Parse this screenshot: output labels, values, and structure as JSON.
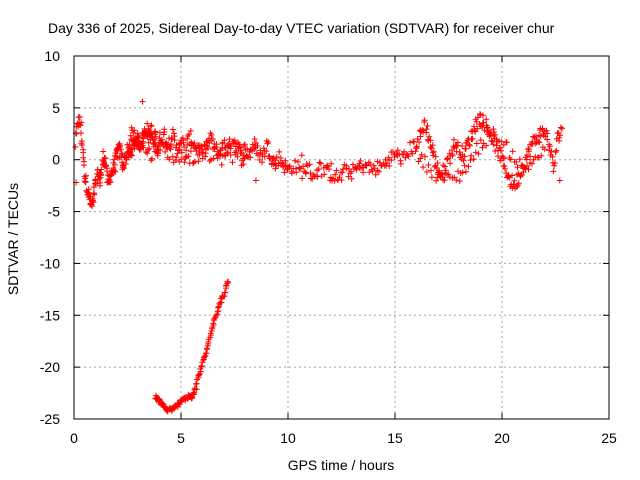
{
  "chart_data": {
    "type": "scatter",
    "title": "Day 336 of 2025, Sidereal Day-to-day VTEC variation (SDTVAR) for receiver chur",
    "xlabel": "GPS time / hours",
    "ylabel": "SDTVAR / TECUs",
    "xlim": [
      0,
      25
    ],
    "ylim": [
      -25,
      10
    ],
    "xticks": [
      "0",
      "5",
      "10",
      "15",
      "20",
      "25"
    ],
    "yticks": [
      "10",
      "5",
      "0",
      "-5",
      "-10",
      "-15",
      "-20",
      "-25"
    ],
    "grid": true,
    "marker": "+",
    "color": "#ff0000",
    "series": [
      {
        "name": "main",
        "x": [
          0.05,
          0.2,
          0.3,
          0.4,
          0.5,
          0.6,
          0.7,
          0.8,
          0.9,
          1.0,
          1.1,
          1.2,
          1.3,
          1.4,
          1.5,
          1.6,
          1.7,
          1.8,
          1.9,
          2.0,
          2.1,
          2.2,
          2.3,
          2.4,
          2.5,
          2.6,
          2.7,
          2.8,
          2.9,
          3.0,
          3.1,
          3.2,
          3.3,
          3.4,
          3.5,
          3.6,
          3.7,
          3.8,
          3.9,
          4.0,
          4.2,
          4.4,
          4.6,
          4.8,
          5.0,
          5.2,
          5.4,
          5.6,
          5.8,
          6.0,
          6.2,
          6.4,
          6.6,
          6.8,
          7.0,
          7.2,
          7.4,
          7.6,
          7.8,
          8.0,
          8.2,
          8.4,
          8.6,
          8.8,
          9.0,
          9.2,
          9.4,
          9.6,
          9.8,
          10.0,
          10.3,
          10.6,
          10.9,
          11.2,
          11.5,
          11.8,
          12.1,
          12.4,
          12.7,
          13.0,
          13.3,
          13.6,
          13.9,
          14.2,
          14.5,
          14.8,
          15.1,
          15.4,
          15.7,
          16.0,
          16.2,
          16.4,
          16.6,
          16.8,
          17.0,
          17.2,
          17.4,
          17.6,
          17.8,
          18.0,
          18.2,
          18.4,
          18.6,
          18.8,
          19.0,
          19.2,
          19.4,
          19.6,
          19.8,
          20.0,
          20.2,
          20.4,
          20.6,
          20.8,
          21.0,
          21.2,
          21.4,
          21.6,
          21.8,
          22.0,
          22.2,
          22.4,
          22.6,
          22.8
        ],
        "y": [
          1.5,
          3.8,
          3.5,
          1.0,
          -1.5,
          -2.5,
          -3.5,
          -4.5,
          -4.0,
          -2.5,
          -1.5,
          -2.0,
          -1.0,
          0.5,
          -0.5,
          -2.5,
          -1.5,
          -1.0,
          -0.5,
          0.5,
          1.0,
          0.5,
          -0.5,
          0.0,
          0.8,
          0.5,
          1.0,
          1.5,
          2.0,
          1.8,
          1.5,
          2.0,
          2.5,
          3.0,
          2.2,
          2.8,
          1.5,
          2.5,
          1.0,
          2.0,
          2.5,
          1.5,
          2.5,
          1.0,
          2.0,
          0.8,
          2.2,
          1.5,
          1.0,
          0.5,
          1.5,
          2.0,
          1.0,
          0.5,
          1.5,
          1.0,
          2.0,
          1.5,
          0.5,
          1.0,
          0.5,
          1.5,
          0.8,
          0.2,
          1.5,
          0.5,
          -0.5,
          0.2,
          -0.5,
          -1.0,
          -0.5,
          -1.2,
          -0.8,
          -1.5,
          -0.8,
          -1.2,
          -1.5,
          -1.8,
          -1.0,
          -1.2,
          -0.8,
          -0.5,
          -1.0,
          -0.8,
          -0.5,
          0.2,
          0.5,
          0.0,
          1.0,
          1.5,
          2.5,
          3.5,
          2.0,
          0.5,
          -1.0,
          -1.5,
          -0.5,
          0.5,
          1.5,
          1.0,
          0.5,
          1.5,
          2.5,
          3.5,
          4.0,
          3.5,
          2.8,
          2.0,
          1.0,
          0.0,
          -1.0,
          -2.0,
          -2.5,
          -1.5,
          -0.5,
          0.5,
          1.5,
          2.0,
          2.5,
          2.8,
          1.5,
          -1.0,
          2.0,
          3.0
        ]
      },
      {
        "name": "branch-a",
        "x": [
          2.6,
          2.8,
          3.2,
          3.6,
          4.0,
          4.4,
          4.8,
          5.2,
          5.6,
          6.0,
          6.5,
          7.0,
          7.5,
          8.0,
          16.0,
          16.5,
          17.0,
          17.5,
          18.0,
          18.5,
          19.0,
          19.5,
          20.0,
          20.5,
          21.0,
          21.5,
          22.0
        ],
        "y": [
          2.0,
          3.0,
          1.2,
          0.5,
          1.2,
          0.8,
          0.0,
          0.5,
          0.2,
          0.8,
          0.2,
          1.0,
          0.3,
          -0.2,
          0.5,
          -0.5,
          -1.5,
          -2.0,
          -1.5,
          -0.2,
          1.5,
          2.5,
          1.5,
          0.5,
          -1.0,
          0.0,
          1.0
        ]
      },
      {
        "name": "outliers",
        "x": [
          3.2,
          0.1,
          8.5,
          6.9,
          22.7
        ],
        "y": [
          5.6,
          -2.2,
          -2.0,
          -0.5,
          -2.0
        ]
      },
      {
        "name": "low-arc",
        "x": [
          3.8,
          3.9,
          4.0,
          4.1,
          4.2,
          4.3,
          4.4,
          4.5,
          4.6,
          4.7,
          4.8,
          4.9,
          5.0,
          5.1,
          5.2,
          5.3,
          5.4,
          5.5,
          5.6,
          5.7,
          5.8,
          5.9,
          6.0,
          6.1,
          6.2,
          6.3,
          6.4,
          6.5,
          6.6,
          6.7,
          6.8,
          6.9,
          7.0,
          7.1,
          7.2
        ],
        "y": [
          -22.9,
          -23.1,
          -23.3,
          -23.6,
          -23.8,
          -24.0,
          -24.2,
          -24.0,
          -24.1,
          -23.9,
          -23.8,
          -23.5,
          -23.2,
          -23.0,
          -23.1,
          -22.9,
          -22.8,
          -23.0,
          -22.6,
          -22.0,
          -21.0,
          -20.5,
          -19.6,
          -19.0,
          -18.4,
          -17.6,
          -16.6,
          -15.8,
          -15.2,
          -14.6,
          -14.0,
          -13.5,
          -13.0,
          -12.3,
          -11.8
        ]
      }
    ]
  }
}
